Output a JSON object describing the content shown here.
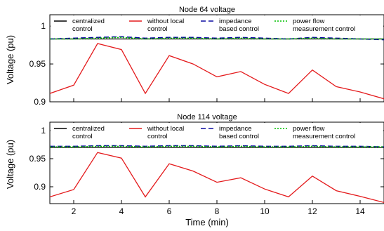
{
  "chart_data": [
    {
      "type": "line",
      "title": "Node 64 voltage",
      "xlabel": "",
      "ylabel": "Voltage (pu)",
      "xlim": [
        1,
        15
      ],
      "ylim": [
        0.9,
        1.015
      ],
      "yticks": [
        0.9,
        0.95,
        1
      ],
      "ytick_labels": [
        "0.9",
        "0.95",
        "1"
      ],
      "xticks": [
        2,
        4,
        6,
        8,
        10,
        12,
        14
      ],
      "xtick_labels": [],
      "grid": false,
      "legend_position": "top",
      "x": [
        1,
        2,
        3,
        4,
        5,
        6,
        7,
        8,
        9,
        10,
        11,
        12,
        13,
        14,
        15
      ],
      "series": [
        {
          "name": "centralized control",
          "color": "#000000",
          "style": "solid",
          "values": [
            0.983,
            0.983,
            0.983,
            0.983,
            0.983,
            0.983,
            0.983,
            0.983,
            0.983,
            0.983,
            0.983,
            0.983,
            0.983,
            0.983,
            0.983
          ]
        },
        {
          "name": "without local control",
          "color": "#e41a1c",
          "style": "solid",
          "values": [
            0.911,
            0.922,
            0.977,
            0.969,
            0.911,
            0.961,
            0.95,
            0.933,
            0.94,
            0.923,
            0.911,
            0.942,
            0.92,
            0.913,
            0.904
          ]
        },
        {
          "name": "impedance based control",
          "color": "#0a0aa0",
          "style": "dashed",
          "values": [
            0.983,
            0.984,
            0.985,
            0.986,
            0.984,
            0.985,
            0.985,
            0.984,
            0.985,
            0.984,
            0.983,
            0.985,
            0.984,
            0.983,
            0.982
          ]
        },
        {
          "name": "power flow measurement control",
          "color": "#00c000",
          "style": "dotted",
          "values": [
            0.983,
            0.983,
            0.984,
            0.985,
            0.983,
            0.984,
            0.984,
            0.983,
            0.984,
            0.983,
            0.983,
            0.984,
            0.983,
            0.983,
            0.983
          ]
        }
      ]
    },
    {
      "type": "line",
      "title": "Node 114 voltage",
      "xlabel": "Time (min)",
      "ylabel": "Voltage (pu)",
      "xlim": [
        1,
        15
      ],
      "ylim": [
        0.87,
        1.015
      ],
      "yticks": [
        0.9,
        0.95,
        1
      ],
      "ytick_labels": [
        "0.9",
        "0.95",
        "1"
      ],
      "xticks": [
        2,
        4,
        6,
        8,
        10,
        12,
        14
      ],
      "xtick_labels": [
        "2",
        "4",
        "6",
        "8",
        "10",
        "12",
        "14"
      ],
      "grid": false,
      "legend_position": "top",
      "x": [
        1,
        2,
        3,
        4,
        5,
        6,
        7,
        8,
        9,
        10,
        11,
        12,
        13,
        14,
        15
      ],
      "series": [
        {
          "name": "centralized control",
          "color": "#000000",
          "style": "solid",
          "values": [
            0.97,
            0.97,
            0.97,
            0.97,
            0.97,
            0.97,
            0.97,
            0.97,
            0.97,
            0.97,
            0.97,
            0.97,
            0.97,
            0.97,
            0.97
          ]
        },
        {
          "name": "without local control",
          "color": "#e41a1c",
          "style": "solid",
          "values": [
            0.882,
            0.895,
            0.961,
            0.951,
            0.882,
            0.941,
            0.928,
            0.908,
            0.916,
            0.896,
            0.882,
            0.919,
            0.893,
            0.883,
            0.872
          ]
        },
        {
          "name": "impedance based control",
          "color": "#0a0aa0",
          "style": "dashed",
          "values": [
            0.972,
            0.972,
            0.973,
            0.973,
            0.972,
            0.973,
            0.973,
            0.972,
            0.973,
            0.972,
            0.972,
            0.973,
            0.972,
            0.972,
            0.971
          ]
        },
        {
          "name": "power flow measurement control",
          "color": "#00c000",
          "style": "dotted",
          "values": [
            0.971,
            0.971,
            0.972,
            0.972,
            0.971,
            0.972,
            0.972,
            0.971,
            0.972,
            0.971,
            0.971,
            0.972,
            0.971,
            0.971,
            0.971
          ]
        }
      ]
    }
  ],
  "legend_entries": [
    {
      "label_lines": [
        "centralized",
        "control"
      ],
      "color": "#000000",
      "style": "solid"
    },
    {
      "label_lines": [
        "without local",
        "control"
      ],
      "color": "#e41a1c",
      "style": "solid"
    },
    {
      "label_lines": [
        "impedance",
        "based control"
      ],
      "color": "#0a0aa0",
      "style": "dashed"
    },
    {
      "label_lines": [
        "power flow",
        "measurement control"
      ],
      "color": "#00c000",
      "style": "dotted"
    }
  ]
}
